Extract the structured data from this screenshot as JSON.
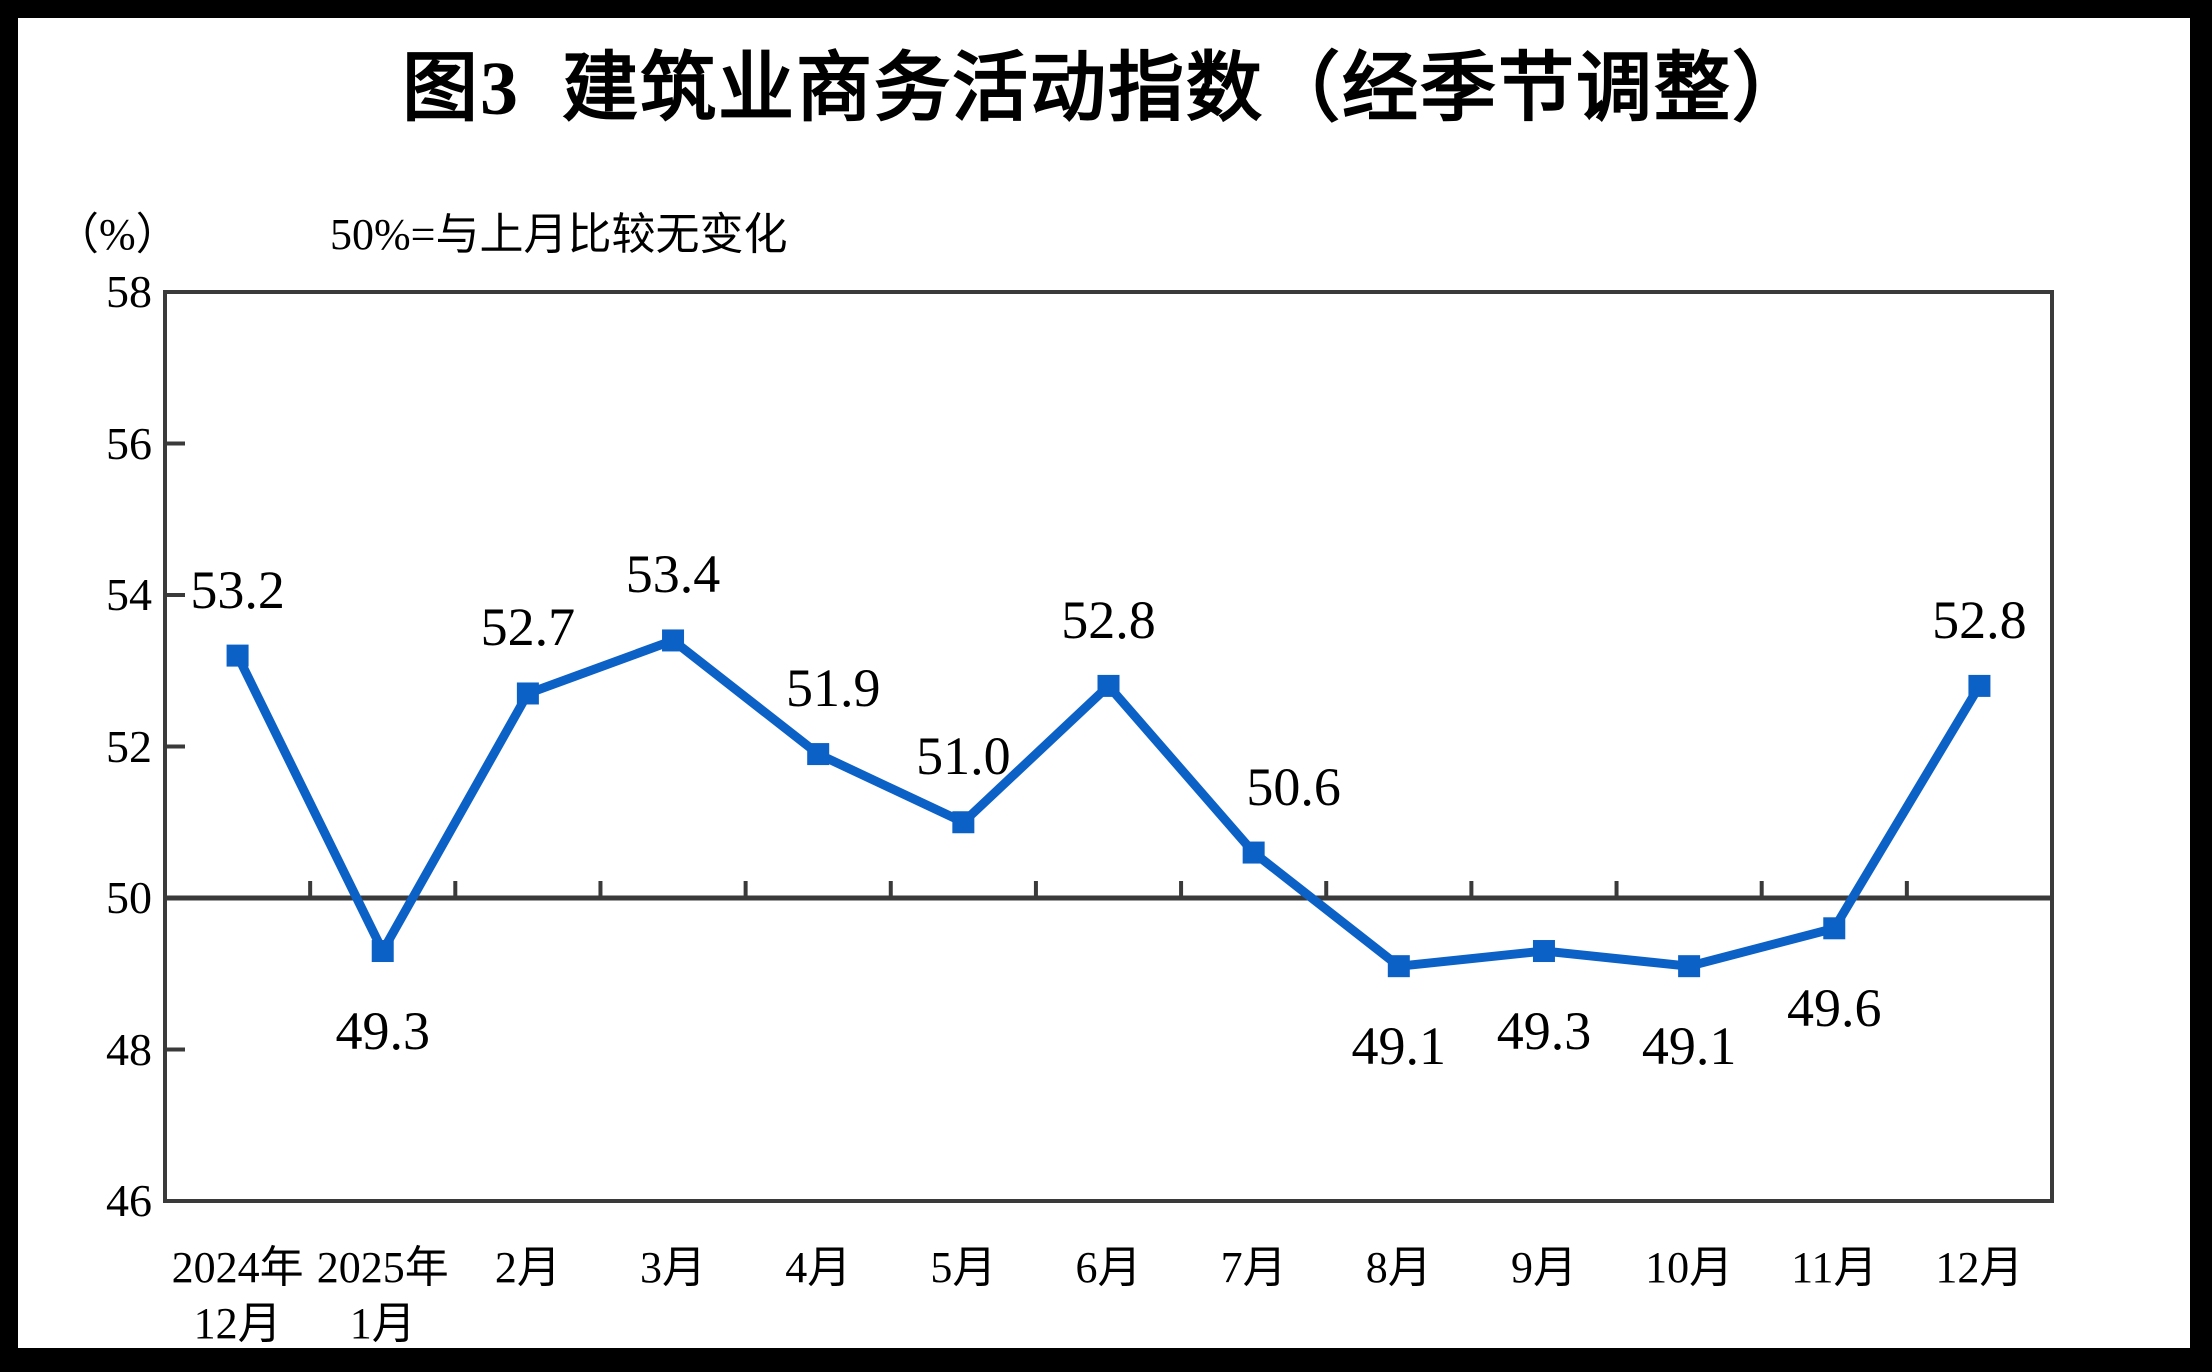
{
  "chart_data": {
    "type": "line",
    "title": "图3  建筑业商务活动指数（经季节调整）",
    "unit_note": "（%）",
    "subtitle": "50%=与上月比较无变化",
    "categories": [
      "2024年\n12月",
      "2025年\n1月",
      "2月",
      "3月",
      "4月",
      "5月",
      "6月",
      "7月",
      "8月",
      "9月",
      "10月",
      "11月",
      "12月"
    ],
    "series": [
      {
        "name": "建筑业商务活动指数",
        "values": [
          53.2,
          49.3,
          52.7,
          53.4,
          51.9,
          51.0,
          52.8,
          50.6,
          49.1,
          49.3,
          49.1,
          49.6,
          52.8
        ]
      }
    ],
    "data_labels": [
      "53.2",
      "49.3",
      "52.7",
      "53.4",
      "51.9",
      "51.0",
      "52.8",
      "50.6",
      "49.1",
      "49.3",
      "49.1",
      "49.6",
      "52.8"
    ],
    "label_positions": [
      "above",
      "below",
      "above",
      "above",
      "above",
      "above",
      "above",
      "above",
      "below",
      "below",
      "below",
      "below",
      "above"
    ],
    "ylim": [
      46,
      58
    ],
    "yticks": [
      46,
      48,
      50,
      52,
      54,
      56,
      58
    ],
    "baseline": 50,
    "grid": false,
    "legend": "none",
    "line_color": "#0C61C7",
    "axis_color": "#3a3a3a",
    "marker": "square"
  }
}
